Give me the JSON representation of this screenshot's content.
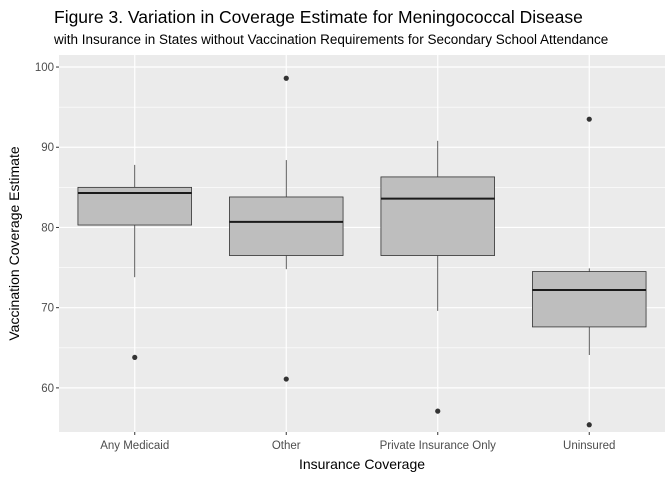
{
  "chart_data": {
    "type": "box",
    "title": "Figure 3. Variation in Coverage Estimate for Meningococcal Disease",
    "subtitle": "with Insurance in States without Vaccination Requirements for Secondary School Attendance",
    "xlabel": "Insurance Coverage",
    "ylabel": "Vaccination Coverage Estimate",
    "categories": [
      "Any Medicaid",
      "Other",
      "Private Insurance Only",
      "Uninsured"
    ],
    "y_ticks": [
      60,
      70,
      80,
      90,
      100
    ],
    "ylim": [
      54.5,
      101.5
    ],
    "grid": true,
    "legend": "none",
    "boxes": [
      {
        "category": "Any Medicaid",
        "whisker_low": 73.8,
        "q1": 80.3,
        "median": 84.3,
        "q3": 85.0,
        "whisker_high": 87.8,
        "outliers": [
          63.8
        ]
      },
      {
        "category": "Other",
        "whisker_low": 74.8,
        "q1": 76.5,
        "median": 80.7,
        "q3": 83.8,
        "whisker_high": 88.4,
        "outliers": [
          98.6,
          61.1
        ]
      },
      {
        "category": "Private Insurance Only",
        "whisker_low": 69.6,
        "q1": 76.5,
        "median": 83.6,
        "q3": 86.3,
        "whisker_high": 90.8,
        "outliers": [
          57.1
        ]
      },
      {
        "category": "Uninsured",
        "whisker_low": 64.1,
        "q1": 67.6,
        "median": 72.2,
        "q3": 74.5,
        "whisker_high": 74.9,
        "outliers": [
          93.5,
          55.4
        ]
      }
    ],
    "colors": {
      "panel_background": "#ebebeb",
      "grid_line": "#ffffff",
      "box_fill": "#bebebe",
      "box_stroke": "#333333",
      "median_line": "#1a1a1a",
      "outlier": "#333333",
      "tick_label": "#4d4d4d"
    }
  }
}
